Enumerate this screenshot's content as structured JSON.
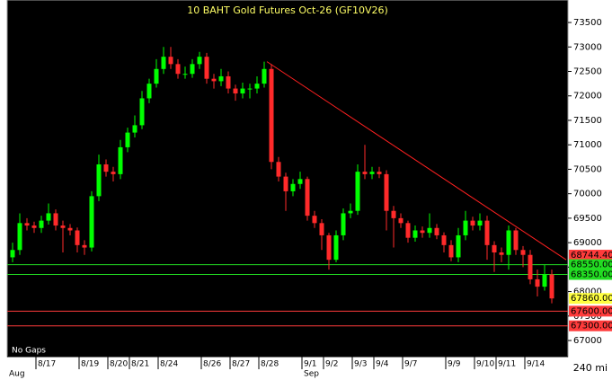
{
  "chart_data": {
    "type": "candlestick",
    "title": "10 BAHT  Gold Futures Oct-26 (GF10V26)",
    "categories": [
      null,
      null,
      null,
      null,
      "8/17",
      null,
      null,
      null,
      null,
      null,
      "8/19",
      null,
      null,
      null,
      "8/20",
      null,
      null,
      "8/21",
      null,
      null,
      null,
      "8/24",
      null,
      null,
      null,
      null,
      null,
      "8/26",
      null,
      null,
      null,
      "8/27",
      null,
      null,
      null,
      "8/28",
      null,
      null,
      null,
      null,
      null,
      "9/1",
      null,
      null,
      "9/2",
      null,
      null,
      null,
      "9/3",
      null,
      null,
      "9/4",
      null,
      null,
      null,
      "9/7",
      null,
      null,
      null,
      null,
      null,
      "9/9",
      null,
      null,
      null,
      "9/10",
      null,
      null,
      "9/11",
      null,
      null,
      null,
      "9/14",
      null,
      null,
      null
    ],
    "months": [
      "Aug",
      "Sep"
    ],
    "open": [
      68700,
      68850,
      69400,
      69350,
      69300,
      69450,
      69600,
      69350,
      69300,
      69250,
      68950,
      68900,
      69950,
      70600,
      70450,
      70400,
      70950,
      71250,
      71400,
      71950,
      72250,
      72550,
      72800,
      72650,
      72450,
      72450,
      72650,
      72800,
      72350,
      72300,
      72400,
      72150,
      72050,
      72150,
      72150,
      72250,
      72550,
      70650,
      70350,
      70050,
      70200,
      70300,
      69550,
      69400,
      69150,
      68650,
      69150,
      69600,
      69650,
      70450,
      70400,
      70450,
      70400,
      69650,
      69500,
      69400,
      69100,
      69250,
      69200,
      69300,
      69150,
      68950,
      68700,
      69150,
      69450,
      69350,
      69450,
      68950,
      68800,
      68750,
      69250,
      68850,
      68750,
      68250,
      68100,
      68350
    ],
    "high": [
      69000,
      69600,
      69500,
      69430,
      69550,
      69800,
      69680,
      69450,
      69380,
      69310,
      69050,
      70050,
      70800,
      70700,
      70550,
      71100,
      71350,
      71600,
      72100,
      72350,
      72750,
      73000,
      73000,
      72750,
      72600,
      72750,
      72900,
      72880,
      72450,
      72550,
      72500,
      72230,
      72270,
      72250,
      72400,
      72700,
      72650,
      70750,
      70430,
      70300,
      70450,
      70350,
      69650,
      69480,
      69200,
      69250,
      69700,
      69800,
      70600,
      71000,
      70550,
      70550,
      70480,
      69750,
      69600,
      69450,
      69350,
      69330,
      69600,
      69380,
      69210,
      69050,
      69300,
      69650,
      69530,
      69600,
      69550,
      69030,
      68900,
      69350,
      69300,
      68930,
      68850,
      68450,
      68550,
      68450
    ],
    "low": [
      68600,
      68750,
      69250,
      69200,
      69200,
      69370,
      69250,
      68800,
      69150,
      68800,
      68750,
      68820,
      69850,
      70350,
      70250,
      70300,
      70850,
      71150,
      71320,
      71850,
      72170,
      72450,
      72550,
      72350,
      72350,
      72370,
      72550,
      72250,
      72150,
      72200,
      72050,
      71900,
      71950,
      71950,
      72050,
      72170,
      70500,
      70250,
      69650,
      69950,
      70100,
      69450,
      69300,
      68850,
      68450,
      68600,
      69050,
      69500,
      69570,
      70300,
      70300,
      70320,
      69250,
      68900,
      69300,
      69000,
      69020,
      69100,
      69100,
      69070,
      68800,
      68620,
      68600,
      69050,
      69250,
      69250,
      68650,
      68400,
      68600,
      68450,
      68750,
      68500,
      68150,
      67900,
      68020,
      67760
    ],
    "close": [
      68850,
      69400,
      69350,
      69300,
      69450,
      69600,
      69350,
      69300,
      69250,
      68950,
      68900,
      69950,
      70600,
      70450,
      70400,
      70950,
      71250,
      71400,
      71950,
      72250,
      72550,
      72800,
      72650,
      72450,
      72450,
      72650,
      72800,
      72350,
      72300,
      72400,
      72150,
      72050,
      72150,
      72150,
      72250,
      72550,
      70650,
      70350,
      70050,
      70200,
      70300,
      69550,
      69400,
      69150,
      68650,
      69150,
      69600,
      69650,
      70450,
      70400,
      70450,
      70400,
      69650,
      69500,
      69400,
      69100,
      69250,
      69200,
      69300,
      69150,
      68950,
      68700,
      69150,
      69450,
      69350,
      69450,
      68950,
      68800,
      68750,
      69250,
      68850,
      68750,
      68250,
      68100,
      68350,
      67860
    ],
    "up_color": "#00ff00",
    "down_color": "#ff2a2a",
    "ylim": [
      66670,
      73960
    ],
    "yticks": [
      67000,
      67500,
      68000,
      68500,
      69000,
      69500,
      70000,
      70500,
      71000,
      71500,
      72000,
      72500,
      73000,
      73500
    ],
    "levels": [
      {
        "value": 68744.4,
        "label": "68744.40",
        "color": "#ff3b3b",
        "line": false
      },
      {
        "value": 68550,
        "label": "68550.00",
        "color": "#22dd22",
        "line": true
      },
      {
        "value": 68350,
        "label": "68350.00",
        "color": "#22dd22",
        "line": true
      },
      {
        "value": 67860,
        "label": "67860.00",
        "color": "#ffff40",
        "line": false
      },
      {
        "value": 67600,
        "label": "67600.00",
        "color": "#ff3b3b",
        "line": true
      },
      {
        "value": 67300,
        "label": "67300.00",
        "color": "#ff3b3b",
        "line": true
      }
    ],
    "trendline": {
      "color": "#ff2020",
      "values": [
        72700,
        68650
      ]
    },
    "note": "No Gaps",
    "interval": "240 mi"
  }
}
